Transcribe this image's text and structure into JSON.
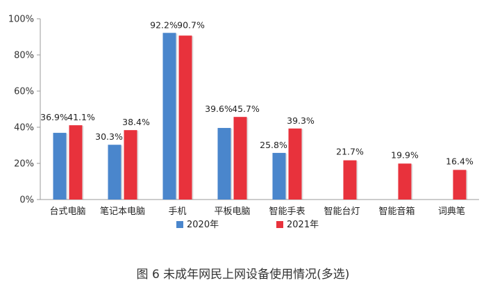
{
  "caption": "图 6 未成年网民上网设备使用情况(多选)",
  "colors": {
    "series_2020": "#4a86cc",
    "series_2021": "#e8323c",
    "axis": "#9a9a9a"
  },
  "chart_data": {
    "type": "bar",
    "title": "",
    "xlabel": "",
    "ylabel": "",
    "ylim": [
      0,
      100
    ],
    "y_ticks": [
      "0%",
      "20%",
      "40%",
      "60%",
      "80%",
      "100%"
    ],
    "legend_position": "bottom",
    "categories": [
      "台式电脑",
      "笔记本电脑",
      "手机",
      "平板电脑",
      "智能手表",
      "智能台灯",
      "智能音箱",
      "词典笔"
    ],
    "series": [
      {
        "name": "2020年",
        "values": [
          36.9,
          30.3,
          92.2,
          39.6,
          25.8,
          null,
          null,
          null
        ],
        "labels": [
          "36.9%",
          "30.3%",
          "92.2%",
          "39.6%",
          "25.8%",
          null,
          null,
          null
        ]
      },
      {
        "name": "2021年",
        "values": [
          41.1,
          38.4,
          90.7,
          45.7,
          39.3,
          21.7,
          19.9,
          16.4
        ],
        "labels": [
          "41.1%",
          "38.4%",
          "90.7%",
          "45.7%",
          "39.3%",
          "21.7%",
          "19.9%",
          "16.4%"
        ]
      }
    ]
  }
}
